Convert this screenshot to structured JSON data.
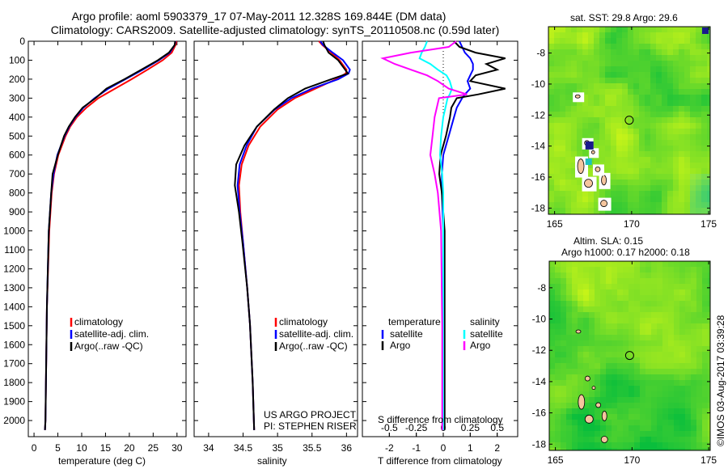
{
  "title": {
    "line1": "Argo profile: aoml 5903379_17 07-May-2011 12.328S 169.844E (DM data)",
    "line2": "Climatology: CARS2009. Satellite-adjusted climatology: synTS_20110508.nc (0.59d later)"
  },
  "colors": {
    "climatology": "#ff0000",
    "satellite": "#0000ff",
    "argo": "#000000",
    "s_satellite": "#00ffff",
    "s_argo": "#ff00ff"
  },
  "chart_data": [
    {
      "type": "line",
      "name": "temperature",
      "xlabel": "temperature (deg C)",
      "ylabel": "",
      "xlim": [
        -1.2,
        31.9
      ],
      "ylim": [
        2085,
        0
      ],
      "xticks": [
        0,
        5,
        10,
        15,
        20,
        25,
        30
      ],
      "yticks": [
        0,
        100,
        200,
        300,
        400,
        500,
        600,
        700,
        800,
        900,
        1000,
        1100,
        1200,
        1300,
        1400,
        1500,
        1600,
        1700,
        1800,
        1900,
        2000
      ],
      "legend": [
        "climatology",
        "satellite-adj. clim.",
        "Argo(..raw -QC)"
      ],
      "depth": [
        0,
        20,
        60,
        100,
        150,
        200,
        250,
        300,
        350,
        400,
        450,
        500,
        600,
        700,
        800,
        1000,
        1400,
        2000,
        2050
      ],
      "series": [
        {
          "name": "climatology",
          "values": [
            29.9,
            29.7,
            28.9,
            27,
            23.8,
            20.5,
            17,
            13.5,
            11,
            9,
            7.6,
            6.6,
            5.1,
            4.2,
            3.7,
            3.2,
            2.7,
            2.4,
            2.3
          ]
        },
        {
          "name": "satellite-adj. clim.",
          "values": [
            29.7,
            29.5,
            28.5,
            26.2,
            22.8,
            19.2,
            15.6,
            12.7,
            10.4,
            8.7,
            7.4,
            6.4,
            4.9,
            4.1,
            3.6,
            3.1,
            2.7,
            2.4,
            2.3
          ]
        },
        {
          "name": "Argo(..raw -QC)",
          "values": [
            29.6,
            29.5,
            28.3,
            26,
            22.5,
            19,
            15.2,
            12.9,
            10.2,
            8.6,
            7.3,
            6.3,
            5,
            3.9,
            3.6,
            3.1,
            2.7,
            2.4,
            2.3
          ]
        }
      ]
    },
    {
      "type": "line",
      "name": "salinity",
      "xlabel": "salinity",
      "xlim": [
        33.79,
        36.16
      ],
      "ylim": [
        2085,
        0
      ],
      "xticks": [
        34,
        34.5,
        35,
        35.5,
        36
      ],
      "legend": [
        "climatology",
        "satellite-adj. clim.",
        "Argo(..raw -QC)"
      ],
      "annotation": [
        "US ARGO PROJECT",
        "PI: STEPHEN RISER"
      ],
      "depth": [
        0,
        20,
        60,
        100,
        150,
        170,
        200,
        250,
        300,
        360,
        450,
        550,
        650,
        760,
        900,
        1060,
        1300,
        1490,
        1800,
        2050
      ],
      "series": [
        {
          "name": "climatology",
          "values": [
            35.6,
            35.65,
            35.78,
            35.9,
            36.0,
            35.99,
            35.85,
            35.55,
            35.25,
            35.0,
            34.75,
            34.58,
            34.48,
            34.44,
            34.46,
            34.5,
            34.56,
            34.6,
            34.64,
            34.66
          ]
        },
        {
          "name": "satellite-adj. clim.",
          "values": [
            35.62,
            35.66,
            35.8,
            35.95,
            36.05,
            36.03,
            35.88,
            35.5,
            35.2,
            34.96,
            34.7,
            34.55,
            34.45,
            34.42,
            34.45,
            34.5,
            34.56,
            34.6,
            34.64,
            34.66
          ]
        },
        {
          "name": "Argo(..raw -QC)",
          "values": [
            35.66,
            35.68,
            35.74,
            35.88,
            35.98,
            36.02,
            35.78,
            35.4,
            35.15,
            34.95,
            34.7,
            34.52,
            34.4,
            34.38,
            34.44,
            34.49,
            34.56,
            34.6,
            34.64,
            34.66
          ]
        }
      ]
    },
    {
      "type": "line",
      "name": "differences",
      "xlabel": "T difference from climatology",
      "x2label": "S difference from climatology",
      "xlim": [
        -3.0,
        2.76
      ],
      "x2lim": [
        -0.75,
        0.69
      ],
      "ylim": [
        2085,
        0
      ],
      "xticks": [
        -2,
        -1,
        0,
        1,
        2
      ],
      "x2ticks": [
        -0.5,
        -0.25,
        0,
        0.25,
        0.5
      ],
      "x2ticklabels": [
        "-0.5",
        "-0.25",
        "0",
        "0.25",
        "0.5"
      ],
      "legend_temperature": {
        "title": "temperature",
        "items": [
          "satellite",
          "Argo"
        ]
      },
      "legend_salinity": {
        "title": "salinity",
        "items": [
          "satellite",
          "Argo"
        ]
      },
      "depth": [
        0,
        30,
        60,
        90,
        120,
        150,
        180,
        210,
        250,
        280,
        300,
        350,
        400,
        500,
        600,
        700,
        800,
        1000,
        1500,
        2050
      ],
      "series": [
        {
          "name": "T satellite",
          "axis": "T",
          "values": [
            0.6,
            0.7,
            0.8,
            1.0,
            1.1,
            1.1,
            1.0,
            0.9,
            1.0,
            0.8,
            0.7,
            0.5,
            0.4,
            0.2,
            0.0,
            -0.05,
            -0.05,
            0.0,
            0.0,
            0.0
          ]
        },
        {
          "name": "T Argo",
          "axis": "T",
          "values": [
            0.4,
            0.6,
            1.2,
            2.3,
            1.6,
            2.0,
            1.2,
            1.0,
            2.3,
            1.3,
            0.5,
            0.3,
            0.25,
            0.1,
            -0.1,
            -0.15,
            -0.05,
            0.05,
            0.05,
            0.05
          ]
        },
        {
          "name": "S satellite",
          "axis": "S",
          "values": [
            -0.15,
            -0.17,
            -0.2,
            -0.22,
            -0.12,
            -0.05,
            0.03,
            0.06,
            0.08,
            0.06,
            0.04,
            0.02,
            0.0,
            -0.02,
            -0.03,
            -0.01,
            0.0,
            0.0,
            0.0,
            0.0
          ]
        },
        {
          "name": "S Argo",
          "axis": "S",
          "values": [
            0.12,
            0.05,
            -0.3,
            -0.56,
            -0.45,
            -0.3,
            -0.15,
            -0.05,
            0.05,
            0.22,
            -0.04,
            -0.06,
            -0.08,
            -0.1,
            -0.12,
            -0.08,
            -0.05,
            -0.02,
            -0.01,
            -0.01
          ]
        }
      ]
    },
    {
      "type": "heatmap",
      "name": "sst-map",
      "title": "sat. SST: 29.8 Argo: 29.6",
      "xlim": [
        164.6,
        175.1
      ],
      "ylim": [
        -18.4,
        -6.3
      ],
      "xticks": [
        165,
        170,
        175
      ],
      "yticks": [
        -8,
        -10,
        -12,
        -14,
        -16,
        -18
      ],
      "marker": [
        169.844,
        -12.328
      ]
    },
    {
      "type": "heatmap",
      "name": "sla-map",
      "title": "Altim. SLA: 0.15",
      "subtitle": "Argo h1000: 0.17 h2000: 0.18",
      "xlim": [
        164.6,
        175.1
      ],
      "ylim": [
        -18.4,
        -6.3
      ],
      "xticks": [
        165,
        170,
        175
      ],
      "yticks": [
        -8,
        -10,
        -12,
        -14,
        -16,
        -18
      ],
      "marker": [
        169.844,
        -12.328
      ]
    }
  ],
  "credit": "©IMOS 03-Aug-2017 03:39:28"
}
